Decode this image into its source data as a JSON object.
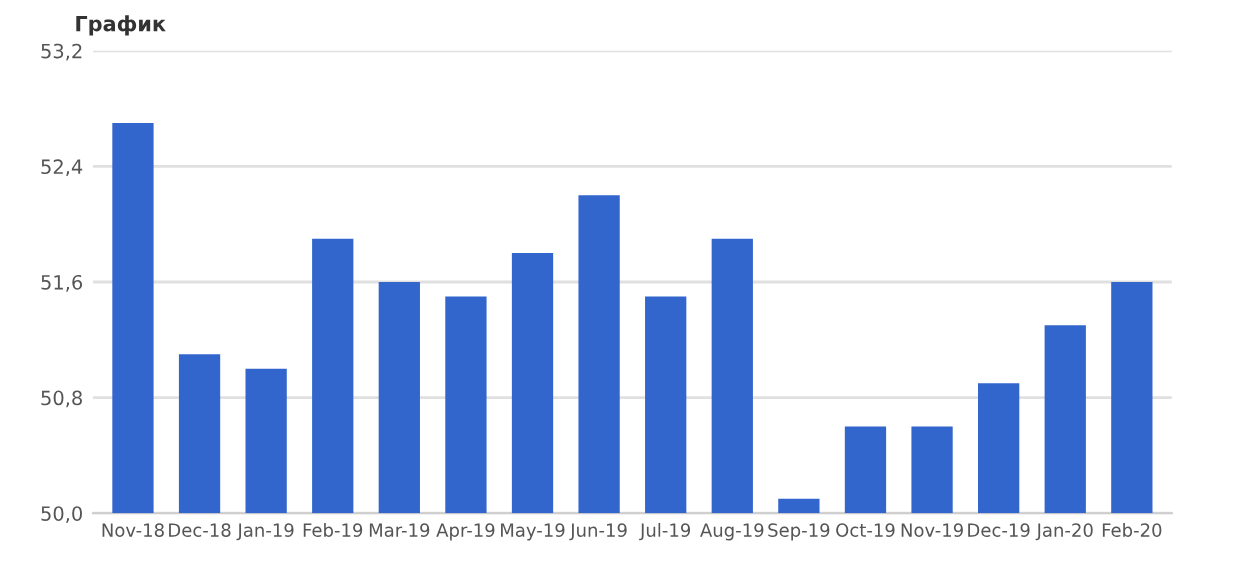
{
  "chart_data": {
    "type": "bar",
    "title": "График",
    "categories": [
      "Nov-18",
      "Dec-18",
      "Jan-19",
      "Feb-19",
      "Mar-19",
      "Apr-19",
      "May-19",
      "Jun-19",
      "Jul-19",
      "Aug-19",
      "Sep-19",
      "Oct-19",
      "Nov-19",
      "Dec-19",
      "Jan-20",
      "Feb-20"
    ],
    "values": [
      52.7,
      51.1,
      51.0,
      51.9,
      51.6,
      51.5,
      51.8,
      52.2,
      51.5,
      51.9,
      50.1,
      50.6,
      50.6,
      50.9,
      51.3,
      51.6
    ],
    "color": "#3366cc",
    "ylim": [
      50.0,
      53.2
    ],
    "yticks": [
      {
        "value": 50.0,
        "label": "50,0"
      },
      {
        "value": 50.8,
        "label": "50,8"
      },
      {
        "value": 51.6,
        "label": "51,6"
      },
      {
        "value": 52.4,
        "label": "52,4"
      },
      {
        "value": 53.2,
        "label": "53,2"
      }
    ],
    "grid": "y"
  }
}
